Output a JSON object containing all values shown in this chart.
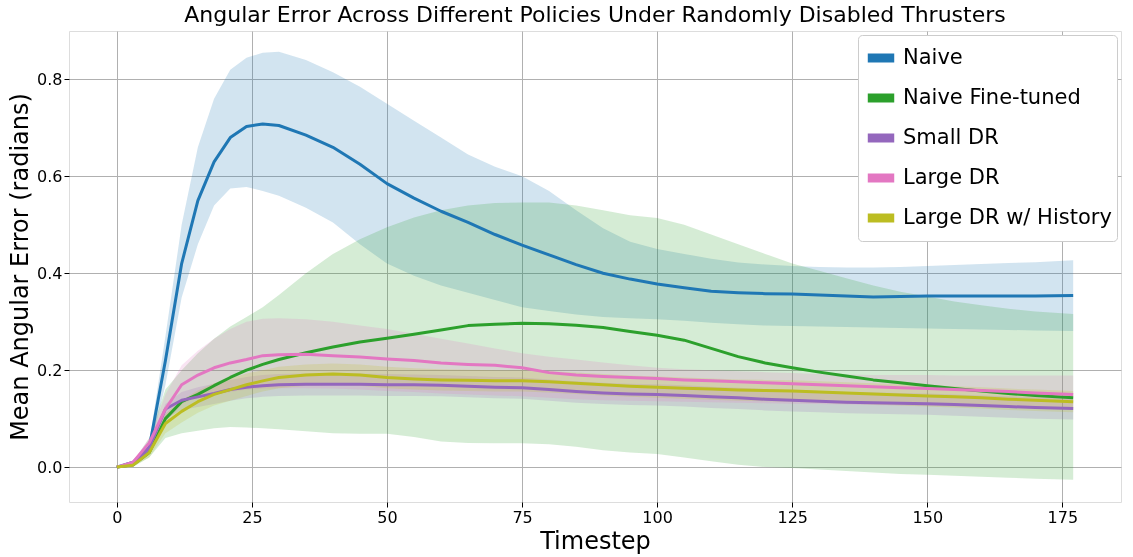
{
  "chart_data": {
    "type": "line",
    "title": "Angular Error Across Different Policies Under Randomly Disabled Thrusters",
    "xlabel": "Timestep",
    "ylabel": "Mean Angular Error (radians)",
    "x": [
      0,
      3,
      6,
      9,
      12,
      15,
      18,
      21,
      24,
      27,
      30,
      35,
      40,
      45,
      50,
      55,
      60,
      65,
      70,
      75,
      80,
      85,
      90,
      95,
      100,
      105,
      110,
      115,
      120,
      125,
      130,
      135,
      140,
      145,
      150,
      155,
      160,
      165,
      170,
      177
    ],
    "series": [
      {
        "name": "Naive",
        "color": "#1f77b4",
        "values": [
          0,
          0.01,
          0.04,
          0.22,
          0.42,
          0.55,
          0.63,
          0.68,
          0.703,
          0.708,
          0.705,
          0.685,
          0.66,
          0.625,
          0.585,
          0.555,
          0.528,
          0.505,
          0.48,
          0.458,
          0.438,
          0.418,
          0.4,
          0.388,
          0.378,
          0.37,
          0.363,
          0.36,
          0.358,
          0.357,
          0.355,
          0.353,
          0.351,
          0.352,
          0.353,
          0.353,
          0.353,
          0.353,
          0.353,
          0.354
        ],
        "upper": [
          0,
          0.012,
          0.05,
          0.27,
          0.5,
          0.66,
          0.76,
          0.82,
          0.845,
          0.855,
          0.857,
          0.84,
          0.815,
          0.785,
          0.75,
          0.715,
          0.68,
          0.645,
          0.62,
          0.6,
          0.57,
          0.53,
          0.493,
          0.465,
          0.45,
          0.44,
          0.43,
          0.422,
          0.418,
          0.415,
          0.413,
          0.412,
          0.412,
          0.413,
          0.415,
          0.417,
          0.419,
          0.421,
          0.423,
          0.427
        ],
        "lower": [
          0,
          0.008,
          0.03,
          0.17,
          0.35,
          0.46,
          0.54,
          0.575,
          0.578,
          0.57,
          0.56,
          0.535,
          0.505,
          0.46,
          0.42,
          0.395,
          0.375,
          0.36,
          0.345,
          0.33,
          0.322,
          0.315,
          0.31,
          0.307,
          0.305,
          0.302,
          0.298,
          0.295,
          0.292,
          0.291,
          0.29,
          0.289,
          0.288,
          0.287,
          0.286,
          0.285,
          0.284,
          0.283,
          0.282,
          0.281
        ]
      },
      {
        "name": "Naive Fine-tuned",
        "color": "#2ca02c",
        "values": [
          0,
          0.005,
          0.03,
          0.1,
          0.135,
          0.15,
          0.168,
          0.185,
          0.2,
          0.212,
          0.222,
          0.236,
          0.248,
          0.258,
          0.266,
          0.274,
          0.283,
          0.292,
          0.295,
          0.297,
          0.296,
          0.293,
          0.288,
          0.28,
          0.272,
          0.262,
          0.245,
          0.228,
          0.215,
          0.205,
          0.196,
          0.188,
          0.18,
          0.174,
          0.168,
          0.162,
          0.157,
          0.152,
          0.148,
          0.143
        ],
        "upper": [
          0,
          0.01,
          0.06,
          0.16,
          0.2,
          0.235,
          0.265,
          0.29,
          0.31,
          0.33,
          0.355,
          0.4,
          0.44,
          0.47,
          0.495,
          0.515,
          0.53,
          0.54,
          0.545,
          0.546,
          0.546,
          0.54,
          0.53,
          0.52,
          0.514,
          0.5,
          0.48,
          0.46,
          0.44,
          0.42,
          0.405,
          0.39,
          0.375,
          0.362,
          0.352,
          0.342,
          0.334,
          0.327,
          0.321,
          0.316
        ],
        "lower": [
          0,
          0,
          0.02,
          0.06,
          0.07,
          0.075,
          0.08,
          0.083,
          0.082,
          0.08,
          0.078,
          0.074,
          0.07,
          0.069,
          0.069,
          0.062,
          0.053,
          0.05,
          0.049,
          0.049,
          0.047,
          0.042,
          0.035,
          0.03,
          0.027,
          0.02,
          0.012,
          0.005,
          0.0,
          -0.002,
          -0.005,
          -0.008,
          -0.011,
          -0.014,
          -0.016,
          -0.018,
          -0.02,
          -0.022,
          -0.024,
          -0.026
        ]
      },
      {
        "name": "Small DR",
        "color": "#9467bd",
        "values": [
          0,
          0.005,
          0.04,
          0.12,
          0.138,
          0.145,
          0.152,
          0.16,
          0.165,
          0.168,
          0.17,
          0.171,
          0.171,
          0.171,
          0.17,
          0.17,
          0.169,
          0.167,
          0.165,
          0.164,
          0.16,
          0.156,
          0.153,
          0.151,
          0.15,
          0.148,
          0.145,
          0.143,
          0.14,
          0.138,
          0.136,
          0.134,
          0.133,
          0.132,
          0.131,
          0.129,
          0.127,
          0.125,
          0.123,
          0.121
        ],
        "upper": [
          0,
          0.006,
          0.045,
          0.13,
          0.155,
          0.165,
          0.172,
          0.18,
          0.186,
          0.19,
          0.192,
          0.193,
          0.193,
          0.193,
          0.192,
          0.191,
          0.19,
          0.188,
          0.186,
          0.185,
          0.181,
          0.177,
          0.174,
          0.172,
          0.171,
          0.169,
          0.166,
          0.164,
          0.161,
          0.159,
          0.157,
          0.155,
          0.154,
          0.153,
          0.152,
          0.15,
          0.148,
          0.146,
          0.144,
          0.142
        ],
        "lower": [
          0,
          0.004,
          0.035,
          0.1,
          0.118,
          0.124,
          0.13,
          0.137,
          0.142,
          0.145,
          0.147,
          0.148,
          0.148,
          0.148,
          0.147,
          0.147,
          0.146,
          0.144,
          0.142,
          0.141,
          0.137,
          0.133,
          0.13,
          0.128,
          0.127,
          0.125,
          0.122,
          0.12,
          0.117,
          0.115,
          0.113,
          0.111,
          0.11,
          0.109,
          0.108,
          0.106,
          0.104,
          0.102,
          0.1,
          0.098
        ]
      },
      {
        "name": "Large DR",
        "color": "#e377c2",
        "values": [
          0,
          0.01,
          0.05,
          0.12,
          0.17,
          0.19,
          0.205,
          0.215,
          0.222,
          0.23,
          0.232,
          0.233,
          0.23,
          0.227,
          0.223,
          0.22,
          0.215,
          0.212,
          0.21,
          0.205,
          0.195,
          0.19,
          0.187,
          0.185,
          0.183,
          0.18,
          0.178,
          0.176,
          0.174,
          0.172,
          0.17,
          0.168,
          0.166,
          0.164,
          0.162,
          0.16,
          0.158,
          0.156,
          0.153,
          0.15
        ],
        "upper": [
          0,
          0.012,
          0.06,
          0.15,
          0.21,
          0.24,
          0.265,
          0.285,
          0.3,
          0.306,
          0.307,
          0.305,
          0.3,
          0.292,
          0.285,
          0.275,
          0.265,
          0.255,
          0.245,
          0.235,
          0.228,
          0.222,
          0.216,
          0.21,
          0.205,
          0.202,
          0.2,
          0.198,
          0.196,
          0.194,
          0.192,
          0.191,
          0.19,
          0.19,
          0.19,
          0.189,
          0.189,
          0.189,
          0.189,
          0.189
        ],
        "lower": [
          0,
          0.008,
          0.04,
          0.09,
          0.13,
          0.145,
          0.15,
          0.155,
          0.16,
          0.162,
          0.163,
          0.163,
          0.162,
          0.16,
          0.157,
          0.155,
          0.152,
          0.15,
          0.148,
          0.146,
          0.143,
          0.14,
          0.138,
          0.137,
          0.136,
          0.135,
          0.134,
          0.133,
          0.132,
          0.131,
          0.13,
          0.129,
          0.128,
          0.127,
          0.126,
          0.125,
          0.124,
          0.123,
          0.122,
          0.121
        ]
      },
      {
        "name": "Large DR w/ History",
        "color": "#bcbd22",
        "values": [
          0,
          0.004,
          0.03,
          0.09,
          0.115,
          0.135,
          0.15,
          0.16,
          0.17,
          0.178,
          0.185,
          0.19,
          0.192,
          0.19,
          0.185,
          0.182,
          0.18,
          0.179,
          0.178,
          0.178,
          0.176,
          0.173,
          0.17,
          0.167,
          0.165,
          0.163,
          0.161,
          0.159,
          0.158,
          0.157,
          0.155,
          0.153,
          0.151,
          0.149,
          0.147,
          0.145,
          0.143,
          0.14,
          0.138,
          0.135
        ],
        "upper": [
          0,
          0.006,
          0.04,
          0.11,
          0.138,
          0.158,
          0.173,
          0.183,
          0.193,
          0.2,
          0.207,
          0.212,
          0.214,
          0.212,
          0.207,
          0.204,
          0.202,
          0.201,
          0.2,
          0.2,
          0.198,
          0.195,
          0.192,
          0.189,
          0.187,
          0.185,
          0.183,
          0.181,
          0.18,
          0.179,
          0.177,
          0.175,
          0.173,
          0.171,
          0.169,
          0.167,
          0.165,
          0.162,
          0.16,
          0.157
        ],
        "lower": [
          0,
          0.002,
          0.02,
          0.07,
          0.092,
          0.112,
          0.127,
          0.137,
          0.147,
          0.156,
          0.163,
          0.168,
          0.17,
          0.168,
          0.163,
          0.16,
          0.158,
          0.157,
          0.156,
          0.156,
          0.154,
          0.151,
          0.148,
          0.145,
          0.143,
          0.141,
          0.139,
          0.137,
          0.136,
          0.135,
          0.133,
          0.131,
          0.129,
          0.127,
          0.125,
          0.123,
          0.121,
          0.118,
          0.116,
          0.113
        ]
      }
    ],
    "xlim": [
      -8.85,
      185.85
    ],
    "xticks": [
      0,
      25,
      50,
      75,
      100,
      125,
      150,
      175
    ],
    "ylim": [
      -0.072,
      0.9
    ],
    "yticks": [
      {
        "value": 0,
        "label": "0.0"
      },
      0.2,
      0.4,
      0.6,
      0.8
    ],
    "grid": true,
    "legend": "top right",
    "line_style": "solid",
    "marker": "none"
  }
}
